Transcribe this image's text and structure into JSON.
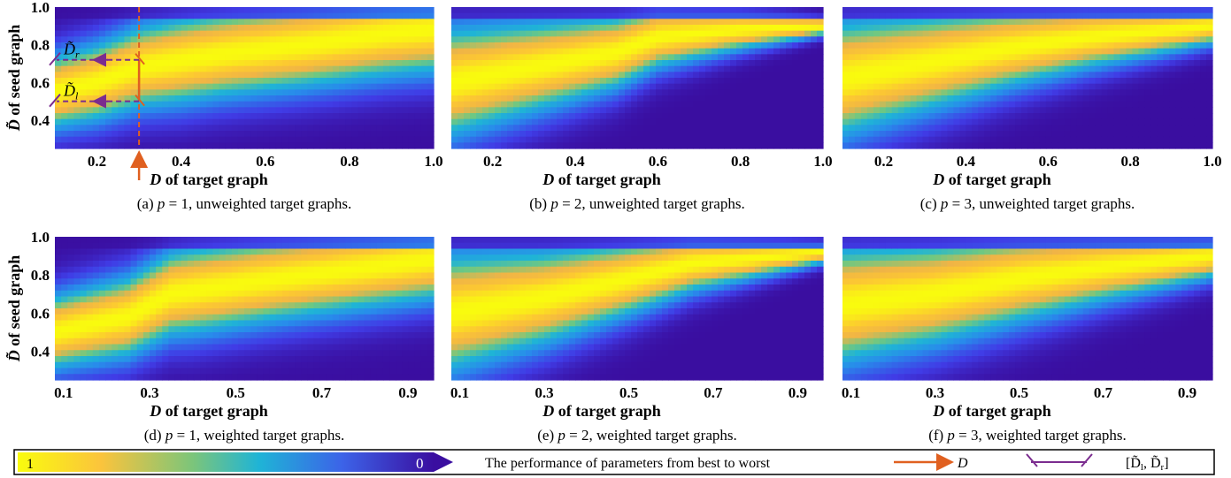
{
  "chart_data": [
    {
      "type": "heatmap",
      "id": "a",
      "caption_prefix": "(a) ",
      "p_label": "p",
      "p_value": "= 1, unweighted target graphs.",
      "xlabel_var": "D",
      "xlabel_rest": " of target graph",
      "ylabel_var": "D̃",
      "ylabel_rest": " of seed graph",
      "xlim": [
        0.1,
        1.0
      ],
      "ylim": [
        0.25,
        1.0
      ],
      "x_ticks": [
        "0.2",
        "0.4",
        "0.6",
        "0.8",
        "1.0"
      ],
      "x_tick_values": [
        0.2,
        0.4,
        0.6,
        0.8,
        1.0
      ],
      "y_ticks": [
        "0.4",
        "0.6",
        "0.8",
        "1.0"
      ],
      "y_tick_values": [
        0.4,
        0.6,
        0.8,
        1.0
      ],
      "ridge": [
        [
          0.1,
          0.55
        ],
        [
          0.2,
          0.6
        ],
        [
          0.3,
          0.68
        ],
        [
          0.5,
          0.75
        ],
        [
          0.7,
          0.8
        ],
        [
          0.9,
          0.86
        ],
        [
          1.0,
          0.88
        ]
      ],
      "width_pattern": [
        [
          0.1,
          0.2
        ],
        [
          0.4,
          0.24
        ],
        [
          1.0,
          0.24
        ]
      ],
      "annotation": {
        "D": 0.3,
        "D_tilde_l": 0.5,
        "D_tilde_r": 0.72,
        "label_l": "D̃",
        "label_l_sub": "l",
        "label_r": "D̃",
        "label_r_sub": "r"
      }
    },
    {
      "type": "heatmap",
      "id": "b",
      "caption_prefix": "(b) ",
      "p_label": "p",
      "p_value": "= 2, unweighted target graphs.",
      "xlabel_var": "D",
      "xlabel_rest": " of target graph",
      "xlim": [
        0.1,
        1.0
      ],
      "ylim": [
        0.25,
        1.0
      ],
      "x_ticks": [
        "0.2",
        "0.4",
        "0.6",
        "0.8",
        "1.0"
      ],
      "x_tick_values": [
        0.2,
        0.4,
        0.6,
        0.8,
        1.0
      ],
      "ridge": [
        [
          0.1,
          0.6
        ],
        [
          0.3,
          0.68
        ],
        [
          0.5,
          0.76
        ],
        [
          0.6,
          0.84
        ],
        [
          0.8,
          0.88
        ],
        [
          1.0,
          0.9
        ]
      ],
      "width_pattern": [
        [
          0.1,
          0.3
        ],
        [
          0.5,
          0.2
        ],
        [
          1.0,
          0.05
        ]
      ]
    },
    {
      "type": "heatmap",
      "id": "c",
      "caption_prefix": "(c) ",
      "p_label": "p",
      "p_value": "= 3, unweighted target graphs.",
      "xlabel_var": "D",
      "xlabel_rest": " of target graph",
      "xlim": [
        0.1,
        1.0
      ],
      "ylim": [
        0.25,
        1.0
      ],
      "x_ticks": [
        "0.2",
        "0.4",
        "0.6",
        "0.8",
        "1.0"
      ],
      "x_tick_values": [
        0.2,
        0.4,
        0.6,
        0.8,
        1.0
      ],
      "ridge": [
        [
          0.1,
          0.62
        ],
        [
          0.3,
          0.7
        ],
        [
          0.5,
          0.78
        ],
        [
          0.7,
          0.84
        ],
        [
          1.0,
          0.9
        ]
      ],
      "width_pattern": [
        [
          0.1,
          0.32
        ],
        [
          0.5,
          0.22
        ],
        [
          1.0,
          0.1
        ]
      ]
    },
    {
      "type": "heatmap",
      "id": "d",
      "caption_prefix": "(d) ",
      "p_label": "p",
      "p_value": "= 1, weighted target graphs.",
      "xlabel_var": "D",
      "xlabel_rest": " of target graph",
      "ylabel_var": "D̃",
      "ylabel_rest": " of seed graph",
      "xlim": [
        0.08,
        0.96
      ],
      "ylim": [
        0.25,
        1.0
      ],
      "x_ticks": [
        "0.1",
        "0.3",
        "0.5",
        "0.7",
        "0.9"
      ],
      "x_tick_values": [
        0.1,
        0.3,
        0.5,
        0.7,
        0.9
      ],
      "y_ticks": [
        "0.4",
        "0.6",
        "0.8",
        "1.0"
      ],
      "y_tick_values": [
        0.4,
        0.6,
        0.8,
        1.0
      ],
      "ridge": [
        [
          0.08,
          0.5
        ],
        [
          0.25,
          0.58
        ],
        [
          0.35,
          0.7
        ],
        [
          0.6,
          0.78
        ],
        [
          0.96,
          0.88
        ]
      ],
      "width_pattern": [
        [
          0.08,
          0.2
        ],
        [
          0.4,
          0.24
        ],
        [
          0.96,
          0.22
        ]
      ]
    },
    {
      "type": "heatmap",
      "id": "e",
      "caption_prefix": "(e) ",
      "p_label": "p",
      "p_value": "= 2, weighted target graphs.",
      "xlabel_var": "D",
      "xlabel_rest": " of target graph",
      "xlim": [
        0.08,
        0.96
      ],
      "ylim": [
        0.25,
        1.0
      ],
      "x_ticks": [
        "0.1",
        "0.3",
        "0.5",
        "0.7",
        "0.9"
      ],
      "x_tick_values": [
        0.1,
        0.3,
        0.5,
        0.7,
        0.9
      ],
      "ridge": [
        [
          0.08,
          0.6
        ],
        [
          0.3,
          0.68
        ],
        [
          0.5,
          0.78
        ],
        [
          0.65,
          0.86
        ],
        [
          0.96,
          0.92
        ]
      ],
      "width_pattern": [
        [
          0.08,
          0.32
        ],
        [
          0.5,
          0.2
        ],
        [
          0.96,
          0.06
        ]
      ]
    },
    {
      "type": "heatmap",
      "id": "f",
      "caption_prefix": "(f) ",
      "p_label": "p",
      "p_value": "= 3, weighted target graphs.",
      "xlabel_var": "D",
      "xlabel_rest": " of target graph",
      "xlim": [
        0.08,
        0.96
      ],
      "ylim": [
        0.25,
        1.0
      ],
      "x_ticks": [
        "0.1",
        "0.3",
        "0.5",
        "0.7",
        "0.9"
      ],
      "x_tick_values": [
        0.1,
        0.3,
        0.5,
        0.7,
        0.9
      ],
      "ridge": [
        [
          0.08,
          0.64
        ],
        [
          0.3,
          0.7
        ],
        [
          0.5,
          0.78
        ],
        [
          0.7,
          0.84
        ],
        [
          0.96,
          0.9
        ]
      ],
      "width_pattern": [
        [
          0.08,
          0.32
        ],
        [
          0.5,
          0.24
        ],
        [
          0.96,
          0.12
        ]
      ]
    }
  ],
  "legend": {
    "colorbar_max": "1",
    "colorbar_min": "0",
    "description": "The performance of parameters from best to worst",
    "arrow_label": "D",
    "interval_label": "[D̃",
    "interval_sub_l": "l",
    "interval_mid": ", D̃",
    "interval_sub_r": "r",
    "interval_end": "]"
  },
  "colors": {
    "best": "#f9fb0e",
    "good": "#fca84a",
    "mid": "#1fb4d6",
    "worst": "#3a0ea0",
    "annotation_D": "#e06020",
    "annotation_interval": "#7b2c8f"
  }
}
